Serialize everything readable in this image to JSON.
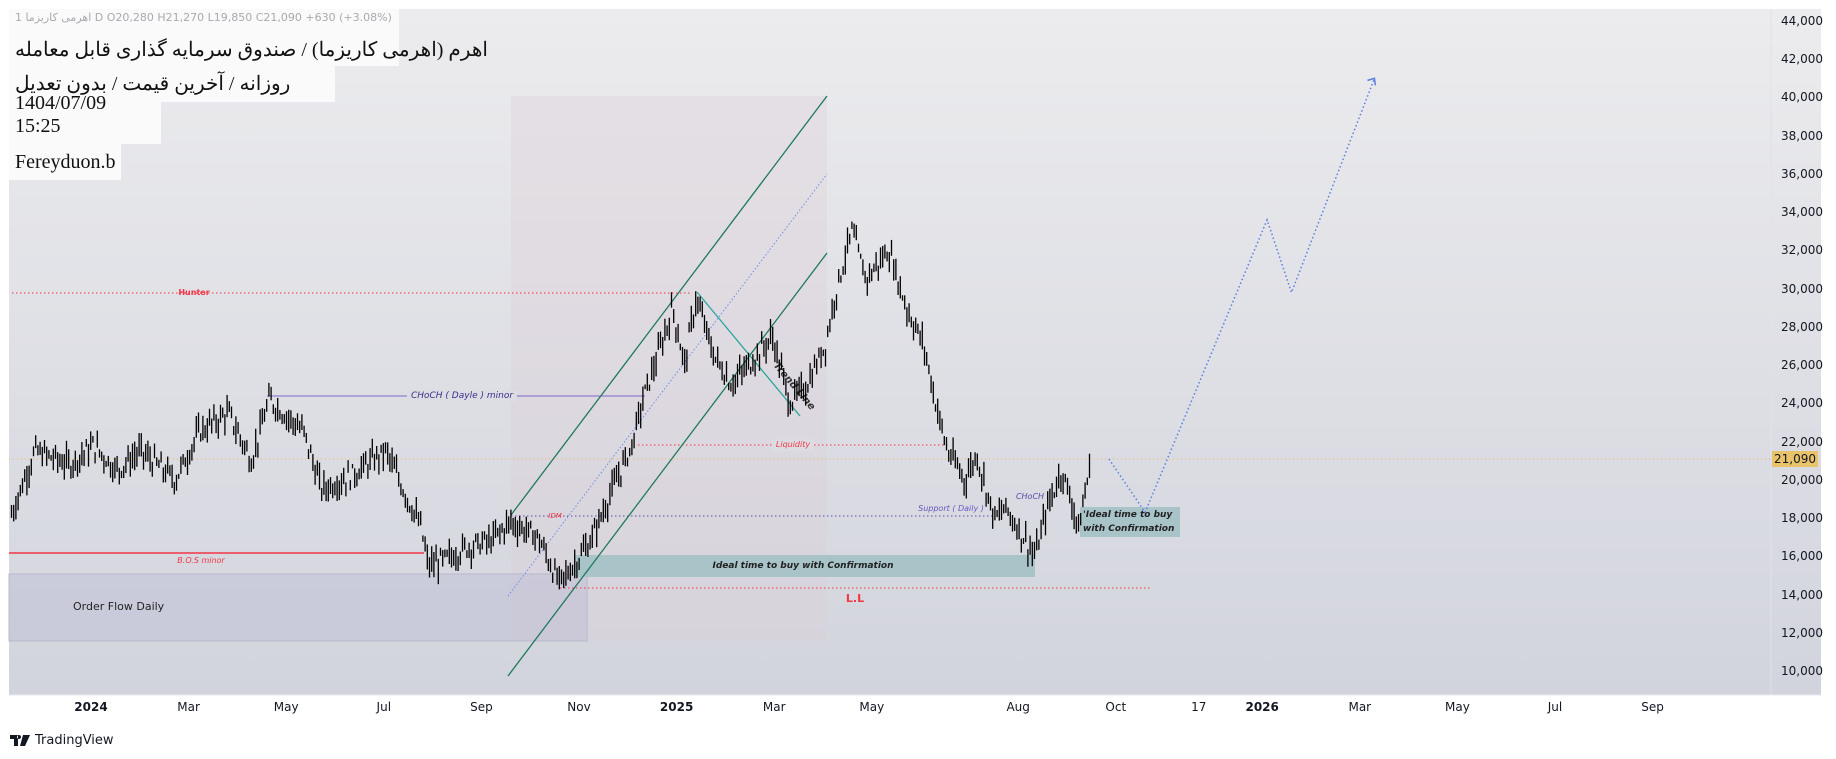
{
  "legend": {
    "ohlc": "اهرمی کاریزما 1 D  O20,280  H21,270  L19,850  C21,090  +630 (+3.08%)",
    "title": "اهرم (اهرمی کاریزما) / صندوق سرمایه گذاری قابل معامله",
    "subtitle": "روزانه / آخرین قیمت / بدون تعدیل",
    "datetime": "1404/07/09 15:25",
    "author": "Fereyduon.b"
  },
  "branding": "TradingView",
  "colors": {
    "up": "#000000",
    "last_price": "#e8c36a",
    "channel": "#1e7a5a",
    "projection": "#5b7fe0",
    "teal_box": "#a9c4c9",
    "red": "#f23645",
    "purple": "#5b4aa8"
  },
  "annotations": {
    "hunter": "Hunter",
    "choch_minor": "CHoCH ( Dayle ) minor",
    "liquidity": "Liquidity",
    "idm": "IDM",
    "bos": "B.O.S minor",
    "order_flow": "Order Flow Daily",
    "ideal_buy": "Ideal time to buy with Confirmation",
    "ideal_buy_small_1": "'Ideal time to buy",
    "ideal_buy_small_2": "with Confirmation",
    "ll": "L.L",
    "support": "Support ( Daily )",
    "choch": "CHoCH",
    "trend_line": "Trend Line"
  },
  "chart_data": {
    "type": "bar",
    "title": "اهرم (اهرمی کاریزما) / صندوق سرمایه گذاری قابل معامله",
    "last_price": 21090,
    "last_price_label": "21,090",
    "ylim": [
      10000,
      44000
    ],
    "y_ticks": [
      "44,000",
      "42,000",
      "40,000",
      "38,000",
      "36,000",
      "34,000",
      "32,000",
      "30,000",
      "28,000",
      "26,000",
      "24,000",
      "22,000",
      "20,000",
      "18,000",
      "16,000",
      "14,000",
      "12,000",
      "10,000"
    ],
    "x_ticks": [
      {
        "label": "2024",
        "month": 0,
        "bold": true
      },
      {
        "label": "Mar",
        "month": 2
      },
      {
        "label": "May",
        "month": 4
      },
      {
        "label": "Jul",
        "month": 6
      },
      {
        "label": "Sep",
        "month": 8
      },
      {
        "label": "Nov",
        "month": 10
      },
      {
        "label": "2025",
        "month": 12,
        "bold": true
      },
      {
        "label": "Mar",
        "month": 14
      },
      {
        "label": "May",
        "month": 16
      },
      {
        "label": "Aug",
        "month": 19
      },
      {
        "label": "Oct",
        "month": 21
      },
      {
        "label": "17",
        "month": 22.7
      },
      {
        "label": "2026",
        "month": 24,
        "bold": true
      },
      {
        "label": "Mar",
        "month": 26
      },
      {
        "label": "May",
        "month": 28
      },
      {
        "label": "Jul",
        "month": 30
      },
      {
        "label": "Sep",
        "month": 32
      }
    ],
    "price_path_month_price": [
      [
        -1.63,
        18200
      ],
      [
        -1.15,
        21500
      ],
      [
        -0.43,
        20800
      ],
      [
        0.05,
        21800
      ],
      [
        0.53,
        20500
      ],
      [
        1.01,
        21500
      ],
      [
        1.73,
        20000
      ],
      [
        2.21,
        22500
      ],
      [
        2.81,
        23500
      ],
      [
        3.29,
        21000
      ],
      [
        3.65,
        24200
      ],
      [
        4.36,
        22500
      ],
      [
        4.72,
        19500
      ],
      [
        5.32,
        20200
      ],
      [
        6.04,
        21500
      ],
      [
        6.4,
        19500
      ],
      [
        6.76,
        17500
      ],
      [
        6.91,
        15500
      ],
      [
        7.24,
        15800
      ],
      [
        7.72,
        16500
      ],
      [
        8.2,
        16800
      ],
      [
        8.59,
        17800
      ],
      [
        9.16,
        17000
      ],
      [
        9.59,
        14600
      ],
      [
        9.88,
        15500
      ],
      [
        10.24,
        16800
      ],
      [
        10.6,
        19000
      ],
      [
        11.08,
        21800
      ],
      [
        11.32,
        24300
      ],
      [
        11.68,
        27000
      ],
      [
        11.92,
        29000
      ],
      [
        12.16,
        26000
      ],
      [
        12.4,
        29500
      ],
      [
        12.76,
        26500
      ],
      [
        13.12,
        25000
      ],
      [
        13.48,
        26000
      ],
      [
        13.96,
        27500
      ],
      [
        14.32,
        24000
      ],
      [
        14.68,
        25000
      ],
      [
        15.04,
        27000
      ],
      [
        15.28,
        30000
      ],
      [
        15.59,
        33000
      ],
      [
        15.88,
        30500
      ],
      [
        16.35,
        32000
      ],
      [
        16.71,
        29000
      ],
      [
        17.07,
        27000
      ],
      [
        17.31,
        24000
      ],
      [
        17.55,
        21500
      ],
      [
        17.91,
        20000
      ],
      [
        18.15,
        21300
      ],
      [
        18.51,
        18000
      ],
      [
        18.75,
        18500
      ],
      [
        19.11,
        17000
      ],
      [
        19.35,
        16000
      ],
      [
        19.59,
        18500
      ],
      [
        19.9,
        20500
      ],
      [
        20.07,
        19000
      ],
      [
        20.24,
        17500
      ],
      [
        20.5,
        21090
      ]
    ],
    "projection_month_price": [
      [
        20.86,
        21090
      ],
      [
        21.6,
        18300
      ],
      [
        24.1,
        33600
      ],
      [
        24.6,
        29800
      ],
      [
        26.3,
        41000
      ]
    ]
  }
}
